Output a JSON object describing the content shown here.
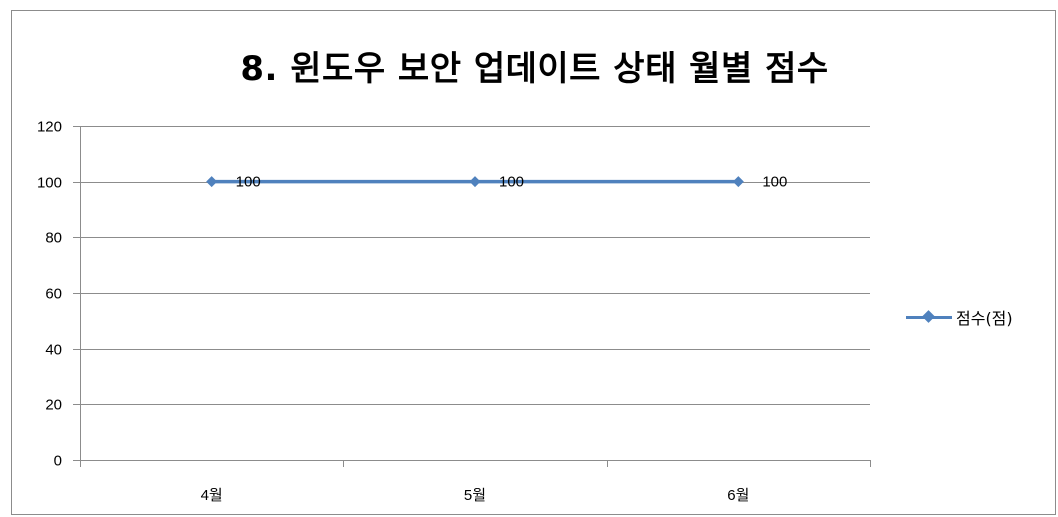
{
  "chart_data": {
    "type": "line",
    "title": "8. 윈도우 보안 업데이트 상태 월별 점수",
    "categories": [
      "4월",
      "5월",
      "6월"
    ],
    "series": [
      {
        "name": "점수(점)",
        "values": [
          100,
          100,
          100
        ],
        "color": "#4f81bd"
      }
    ],
    "data_labels": [
      "100",
      "100",
      "100"
    ],
    "ylim": [
      0,
      120
    ],
    "yticks": [
      0,
      20,
      40,
      60,
      80,
      100,
      120
    ],
    "xlabel": "",
    "ylabel": "",
    "grid": true,
    "legend": "right",
    "colors": {
      "gridline": "#8c8c8c",
      "axis": "#8c8c8c"
    }
  }
}
